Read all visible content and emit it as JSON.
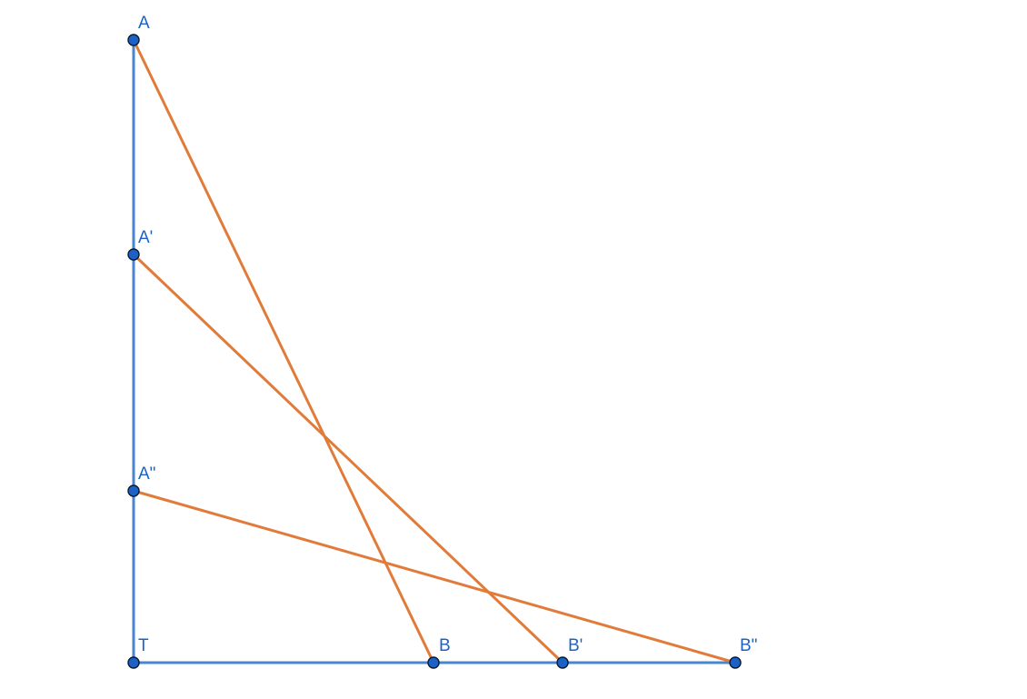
{
  "colors": {
    "axes": "#4a86cf",
    "segments": "#e07b39",
    "points": "#1c62c6",
    "labels": "#1c62c6"
  },
  "points": {
    "A": {
      "label": "A"
    },
    "A1": {
      "label": "A'"
    },
    "A2": {
      "label": "A\""
    },
    "T": {
      "label": "T"
    },
    "B": {
      "label": "B"
    },
    "B1": {
      "label": "B'"
    },
    "B2": {
      "label": "B\""
    }
  },
  "segments": [
    {
      "from": "A",
      "to": "B"
    },
    {
      "from": "A1",
      "to": "B1"
    },
    {
      "from": "A2",
      "to": "B2"
    }
  ]
}
